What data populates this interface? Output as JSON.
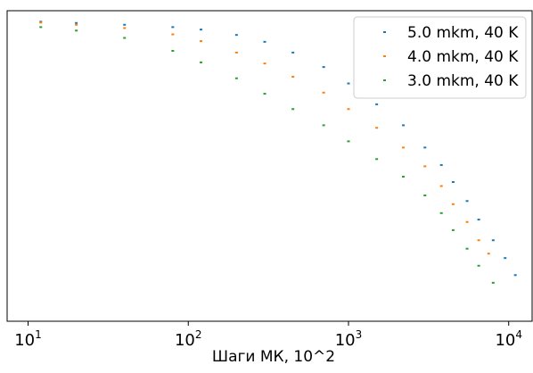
{
  "chart_data": {
    "type": "scatter",
    "title": "",
    "xlabel": "Шаги МК, 10^2",
    "ylabel": "",
    "x_scale": "log",
    "y_scale": "log",
    "xlim": [
      7.4,
      14000
    ],
    "ylim": [
      0.0008,
      1.3
    ],
    "grid": false,
    "legend_position": "top-right",
    "x_ticks": [
      {
        "value": 10,
        "base": "10",
        "exp": "1"
      },
      {
        "value": 100,
        "base": "10",
        "exp": "2"
      },
      {
        "value": 1000,
        "base": "10",
        "exp": "3"
      },
      {
        "value": 10000,
        "base": "10",
        "exp": "4"
      }
    ],
    "series": [
      {
        "name": "5.0 mkm, 40 K",
        "color": "#1f77b4",
        "points": [
          [
            12,
            1.0
          ],
          [
            20,
            0.97
          ],
          [
            40,
            0.93
          ],
          [
            80,
            0.88
          ],
          [
            120,
            0.83
          ],
          [
            200,
            0.73
          ],
          [
            300,
            0.62
          ],
          [
            450,
            0.48
          ],
          [
            700,
            0.34
          ],
          [
            1000,
            0.23
          ],
          [
            1500,
            0.14
          ],
          [
            2200,
            0.085
          ],
          [
            3000,
            0.05
          ],
          [
            3800,
            0.033
          ],
          [
            4500,
            0.022
          ],
          [
            5500,
            0.014
          ],
          [
            6500,
            0.009
          ],
          [
            8000,
            0.0055
          ],
          [
            9500,
            0.0036
          ],
          [
            11000,
            0.0024
          ]
        ]
      },
      {
        "name": "4.0 mkm, 40 K",
        "color": "#ff7f0e",
        "points": [
          [
            12,
            0.98
          ],
          [
            20,
            0.93
          ],
          [
            40,
            0.86
          ],
          [
            80,
            0.74
          ],
          [
            120,
            0.63
          ],
          [
            200,
            0.48
          ],
          [
            300,
            0.37
          ],
          [
            450,
            0.27
          ],
          [
            700,
            0.185
          ],
          [
            1000,
            0.125
          ],
          [
            1500,
            0.08
          ],
          [
            2200,
            0.05
          ],
          [
            3000,
            0.032
          ],
          [
            3800,
            0.02
          ],
          [
            4500,
            0.013
          ],
          [
            5500,
            0.0085
          ],
          [
            6500,
            0.0055
          ],
          [
            7500,
            0.004
          ]
        ]
      },
      {
        "name": "3.0 mkm, 40 K",
        "color": "#2ca02c",
        "points": [
          [
            12,
            0.88
          ],
          [
            20,
            0.81
          ],
          [
            40,
            0.68
          ],
          [
            80,
            0.5
          ],
          [
            120,
            0.38
          ],
          [
            200,
            0.26
          ],
          [
            300,
            0.18
          ],
          [
            450,
            0.125
          ],
          [
            700,
            0.085
          ],
          [
            1000,
            0.058
          ],
          [
            1500,
            0.038
          ],
          [
            2200,
            0.025
          ],
          [
            3000,
            0.016
          ],
          [
            3800,
            0.0105
          ],
          [
            4500,
            0.007
          ],
          [
            5500,
            0.0045
          ],
          [
            6500,
            0.003
          ],
          [
            8000,
            0.002
          ]
        ]
      }
    ]
  }
}
